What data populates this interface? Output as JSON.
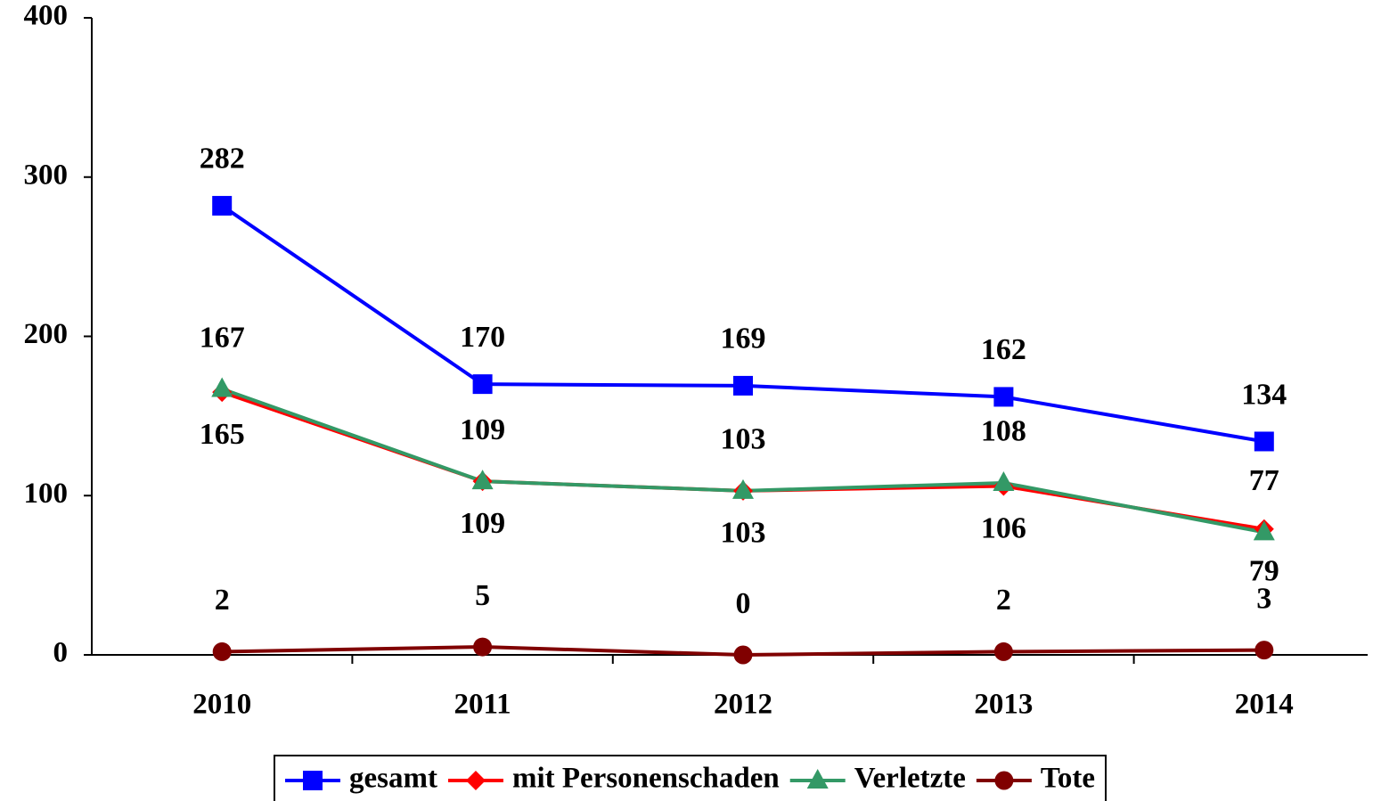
{
  "chart_data": {
    "type": "line",
    "categories": [
      "2010",
      "2011",
      "2012",
      "2013",
      "2014"
    ],
    "series": [
      {
        "name": "gesamt",
        "color": "#0000ff",
        "marker": "square",
        "values": [
          282,
          170,
          169,
          162,
          134
        ]
      },
      {
        "name": "mit Personenschaden",
        "color": "#ff0000",
        "marker": "diamond",
        "values": [
          165,
          109,
          103,
          106,
          79
        ]
      },
      {
        "name": "Verletzte",
        "color": "#339966",
        "marker": "triangle",
        "values": [
          167,
          109,
          103,
          108,
          77
        ]
      },
      {
        "name": "Tote",
        "color": "#800000",
        "marker": "circle",
        "values": [
          2,
          5,
          0,
          2,
          3
        ]
      }
    ],
    "ylim": [
      0,
      400
    ],
    "yticks": [
      0,
      100,
      200,
      300,
      400
    ],
    "legend": "bottom"
  }
}
